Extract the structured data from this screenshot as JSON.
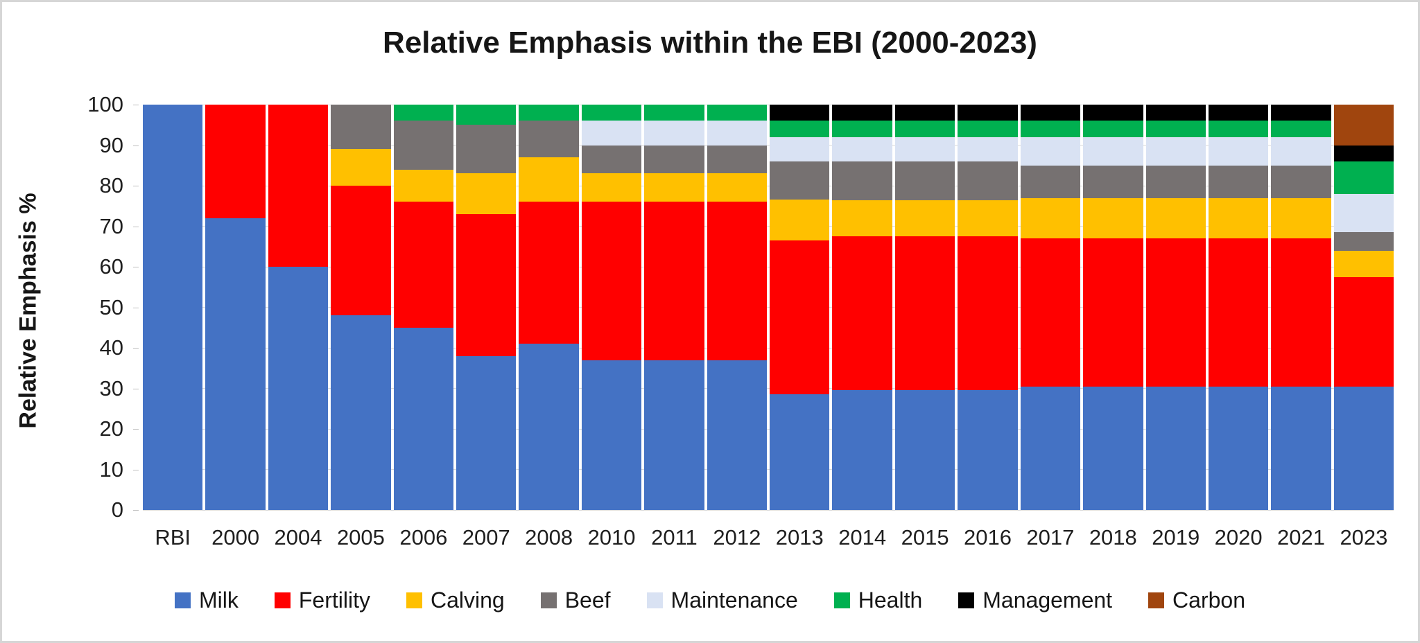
{
  "chart_data": {
    "type": "bar",
    "stacked": true,
    "title": "Relative Emphasis within the EBI (2000-2023)",
    "ylabel": "Relative Emphasis %",
    "xlabel": "",
    "ylim": [
      0,
      100
    ],
    "y_ticks": [
      0,
      10,
      20,
      30,
      40,
      50,
      60,
      70,
      80,
      90,
      100
    ],
    "grid": true,
    "legend_position": "bottom",
    "categories": [
      "RBI",
      "2000",
      "2004",
      "2005",
      "2006",
      "2007",
      "2008",
      "2010",
      "2011",
      "2012",
      "2013",
      "2014",
      "2015",
      "2016",
      "2017",
      "2018",
      "2019",
      "2020",
      "2021",
      "2023"
    ],
    "series": [
      {
        "name": "Milk",
        "color": "#4472C4",
        "values": [
          100,
          72,
          60,
          48,
          45,
          38,
          41,
          37,
          37,
          37,
          28.5,
          29.5,
          29.5,
          29.5,
          30.5,
          30.5,
          30.5,
          30.5,
          30.5,
          30.5
        ]
      },
      {
        "name": "Fertility",
        "color": "#FF0000",
        "values": [
          0,
          28,
          40,
          32,
          31,
          35,
          35,
          39,
          39,
          39,
          38,
          38,
          38,
          38,
          36.5,
          36.5,
          36.5,
          36.5,
          36.5,
          27
        ]
      },
      {
        "name": "Calving",
        "color": "#FFC000",
        "values": [
          0,
          0,
          0,
          9,
          8,
          10,
          11,
          7,
          7,
          7,
          10,
          9,
          9,
          9,
          10,
          10,
          10,
          10,
          10,
          6.5
        ]
      },
      {
        "name": "Beef",
        "color": "#767171",
        "values": [
          0,
          0,
          0,
          11,
          12,
          12,
          9,
          7,
          7,
          7,
          9.5,
          9.5,
          9.5,
          9.5,
          8,
          8,
          8,
          8,
          8,
          4.5
        ]
      },
      {
        "name": "Maintenance",
        "color": "#D9E2F3",
        "values": [
          0,
          0,
          0,
          0,
          0,
          0,
          0,
          6,
          6,
          6,
          6,
          6,
          6,
          6,
          7,
          7,
          7,
          7,
          7,
          9.5
        ]
      },
      {
        "name": "Health",
        "color": "#00B050",
        "values": [
          0,
          0,
          0,
          0,
          4,
          5,
          4,
          4,
          4,
          4,
          4,
          4,
          4,
          4,
          4,
          4,
          4,
          4,
          4,
          8
        ]
      },
      {
        "name": "Management",
        "color": "#000000",
        "values": [
          0,
          0,
          0,
          0,
          0,
          0,
          0,
          0,
          0,
          0,
          4,
          4,
          4,
          4,
          4,
          4,
          4,
          4,
          4,
          4
        ]
      },
      {
        "name": "Carbon",
        "color": "#A0450E",
        "values": [
          0,
          0,
          0,
          0,
          0,
          0,
          0,
          0,
          0,
          0,
          0,
          0,
          0,
          0,
          0,
          0,
          0,
          0,
          0,
          10
        ]
      }
    ]
  }
}
